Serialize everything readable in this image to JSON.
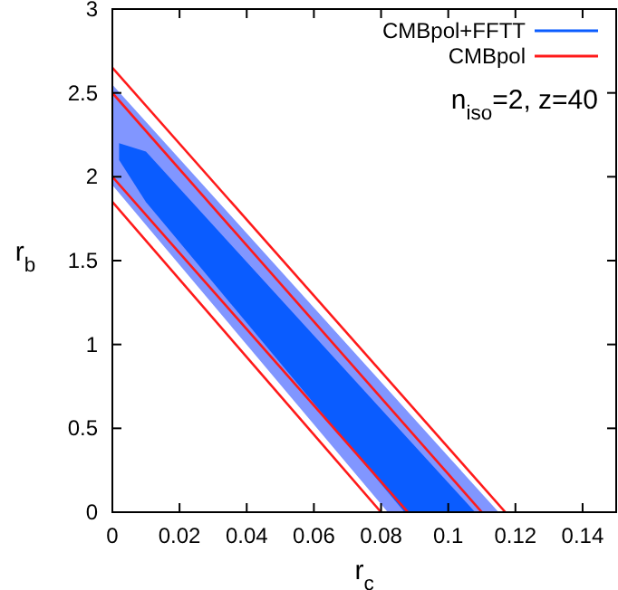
{
  "chart_data": {
    "type": "line",
    "xlabel": "r$_{c}$",
    "ylabel": "r$_{b}$",
    "xlim": [
      0,
      0.15
    ],
    "xticks": [
      0,
      0.02,
      0.04,
      0.06,
      0.08,
      0.1,
      0.12,
      0.14
    ],
    "ylim": [
      0,
      3
    ],
    "yticks": [
      0,
      0.5,
      1,
      1.5,
      2,
      2.5,
      3
    ],
    "legend": "top right",
    "annotations": [
      "n$_{iso}$=2, z=40"
    ],
    "series": [
      {
        "type": "area",
        "color": "#8196ff",
        "x": [
          0,
          0.115,
          0.082,
          0
        ],
        "values": [
          2.55,
          0,
          0,
          1.95
        ]
      },
      {
        "type": "area",
        "name": "CMBpol+FFTT",
        "color": "#0a5cff",
        "x": [
          0.002,
          0.01,
          0.108,
          0.087,
          0.01,
          0.002
        ],
        "values": [
          2.2,
          2.15,
          0,
          0,
          1.85,
          2.1
        ]
      },
      {
        "name": "CMBpol",
        "color": "#ff1a1a",
        "x": [
          0,
          0.117
        ],
        "values": [
          2.65,
          0
        ]
      },
      {
        "color": "#ff1a1a",
        "x": [
          0,
          0.11
        ],
        "values": [
          2.5,
          0
        ]
      },
      {
        "color": "#ff1a1a",
        "x": [
          0,
          0.088
        ],
        "values": [
          2.0,
          0
        ]
      },
      {
        "color": "#ff1a1a",
        "x": [
          0,
          0.08
        ],
        "values": [
          1.85,
          0
        ]
      }
    ]
  }
}
